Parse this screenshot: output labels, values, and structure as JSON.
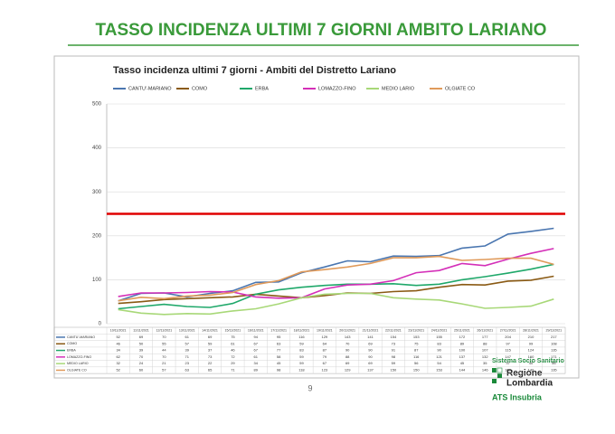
{
  "header": {
    "title": "TASSO INCIDENZA ULTIMI 7 GIORNI AMBITO LARIANO"
  },
  "chart_data": {
    "type": "line",
    "title": "Tasso incidenza ultimi 7 giorni - Ambiti del Distretto Lariano",
    "categories": [
      "10/11/2021",
      "11/11/2021",
      "12/11/2021",
      "13/11/2021",
      "14/11/2021",
      "15/11/2021",
      "16/11/2021",
      "17/11/2021",
      "18/11/2021",
      "19/11/2021",
      "20/11/2021",
      "21/11/2021",
      "22/11/2021",
      "23/11/2021",
      "24/11/2021",
      "25/11/2021",
      "26/11/2021",
      "27/11/2021",
      "28/11/2021",
      "29/11/2021"
    ],
    "series": [
      {
        "name": "CANTU'-MARIANO",
        "color": "#4a76b0",
        "values": [
          52,
          69,
          70,
          61,
          69,
          75,
          94,
          95,
          116,
          129,
          143,
          141,
          154,
          153,
          155,
          172,
          177,
          204,
          210,
          217
        ]
      },
      {
        "name": "COMO",
        "color": "#8a5a14",
        "values": [
          46,
          50,
          55,
          57,
          59,
          61,
          67,
          63,
          59,
          64,
          70,
          69,
          73,
          75,
          83,
          89,
          88,
          97,
          99,
          108
        ]
      },
      {
        "name": "ERBA",
        "color": "#1fa86a",
        "values": [
          34,
          39,
          44,
          39,
          37,
          46,
          67,
          77,
          83,
          87,
          90,
          90,
          91,
          87,
          90,
          100,
          107,
          115,
          124,
          135
        ]
      },
      {
        "name": "LOMAZZO-FINO",
        "color": "#d42fb8",
        "values": [
          62,
          70,
          70,
          71,
          73,
          72,
          61,
          58,
          59,
          79,
          88,
          90,
          98,
          116,
          121,
          137,
          132,
          147,
          160,
          171
        ]
      },
      {
        "name": "MEDIO LARIO",
        "color": "#a8d878",
        "values": [
          32,
          24,
          21,
          23,
          22,
          29,
          34,
          45,
          59,
          67,
          69,
          69,
          59,
          56,
          54,
          45,
          35,
          37,
          40,
          56
        ]
      },
      {
        "name": "OLGIATE CO",
        "color": "#e09a5a",
        "values": [
          52,
          60,
          57,
          63,
          65,
          71,
          89,
          98,
          118,
          123,
          129,
          137,
          150,
          150,
          153,
          144,
          146,
          149,
          149,
          135
        ]
      }
    ],
    "reference_line": {
      "value": 250,
      "color": "#e00000"
    },
    "ylim": [
      0,
      500
    ],
    "yticks": [
      0,
      100,
      200,
      300,
      400,
      500
    ],
    "grid": true,
    "legend": "top"
  },
  "page_number": "9",
  "logo": {
    "line1": "Sistema Socio Sanitario",
    "line2": "Regione",
    "line3": "Lombardia",
    "line4": "ATS Insubria"
  }
}
